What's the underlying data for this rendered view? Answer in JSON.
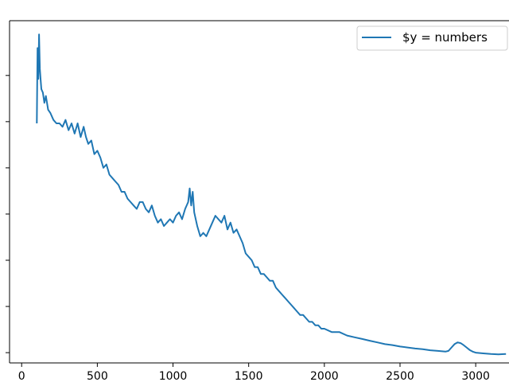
{
  "chart_data": {
    "type": "line",
    "title": "",
    "xlabel": "",
    "ylabel": "",
    "xlim": [
      -80,
      3220
    ],
    "ylim": [
      0.0,
      1.0
    ],
    "x_ticks": [
      {
        "value": 0,
        "label": "0"
      },
      {
        "value": 500,
        "label": "500"
      },
      {
        "value": 1000,
        "label": "1000"
      },
      {
        "value": 1500,
        "label": "1500"
      },
      {
        "value": 2000,
        "label": "2000"
      },
      {
        "value": 2500,
        "label": "2500"
      },
      {
        "value": 3000,
        "label": "3000"
      }
    ],
    "y_ticks": [
      0.03,
      0.165,
      0.3,
      0.435,
      0.57,
      0.705,
      0.84
    ],
    "grid": false,
    "legend": {
      "position": "top-right",
      "entries": [
        "$y = numbers"
      ]
    },
    "colors": {
      "series": "#1f77b4",
      "axes": "#000000",
      "background": "#ffffff"
    },
    "series": [
      {
        "name": "$y = numbers",
        "x": [
          100,
          105,
          110,
          115,
          120,
          125,
          130,
          140,
          150,
          160,
          175,
          190,
          210,
          230,
          250,
          270,
          290,
          310,
          330,
          350,
          370,
          390,
          410,
          425,
          440,
          460,
          480,
          500,
          520,
          540,
          560,
          580,
          600,
          620,
          640,
          660,
          680,
          700,
          720,
          740,
          760,
          780,
          800,
          820,
          840,
          860,
          880,
          900,
          920,
          940,
          960,
          980,
          1000,
          1020,
          1040,
          1060,
          1080,
          1100,
          1110,
          1120,
          1130,
          1140,
          1160,
          1180,
          1200,
          1220,
          1240,
          1260,
          1280,
          1300,
          1320,
          1340,
          1360,
          1380,
          1400,
          1420,
          1440,
          1460,
          1480,
          1500,
          1520,
          1540,
          1560,
          1580,
          1600,
          1620,
          1640,
          1660,
          1680,
          1700,
          1720,
          1740,
          1760,
          1780,
          1800,
          1820,
          1840,
          1860,
          1880,
          1900,
          1920,
          1940,
          1960,
          1980,
          2000,
          2050,
          2100,
          2150,
          2200,
          2250,
          2300,
          2350,
          2400,
          2450,
          2500,
          2550,
          2600,
          2650,
          2700,
          2750,
          2800,
          2820,
          2840,
          2860,
          2880,
          2900,
          2920,
          2940,
          2960,
          2980,
          3000,
          3050,
          3100,
          3150,
          3200
        ],
        "y": [
          0.7,
          0.92,
          0.83,
          0.96,
          0.86,
          0.83,
          0.8,
          0.79,
          0.76,
          0.78,
          0.74,
          0.73,
          0.71,
          0.7,
          0.7,
          0.69,
          0.71,
          0.68,
          0.7,
          0.67,
          0.7,
          0.66,
          0.69,
          0.66,
          0.64,
          0.65,
          0.61,
          0.62,
          0.6,
          0.57,
          0.58,
          0.55,
          0.54,
          0.53,
          0.52,
          0.5,
          0.5,
          0.48,
          0.47,
          0.46,
          0.45,
          0.47,
          0.47,
          0.45,
          0.44,
          0.46,
          0.43,
          0.41,
          0.42,
          0.4,
          0.41,
          0.42,
          0.41,
          0.43,
          0.44,
          0.42,
          0.45,
          0.47,
          0.51,
          0.46,
          0.5,
          0.44,
          0.4,
          0.37,
          0.38,
          0.37,
          0.39,
          0.41,
          0.43,
          0.42,
          0.41,
          0.43,
          0.39,
          0.41,
          0.38,
          0.39,
          0.37,
          0.35,
          0.32,
          0.31,
          0.3,
          0.28,
          0.28,
          0.26,
          0.26,
          0.25,
          0.24,
          0.24,
          0.22,
          0.21,
          0.2,
          0.19,
          0.18,
          0.17,
          0.16,
          0.15,
          0.14,
          0.14,
          0.13,
          0.12,
          0.12,
          0.11,
          0.11,
          0.1,
          0.1,
          0.09,
          0.09,
          0.08,
          0.075,
          0.07,
          0.065,
          0.06,
          0.055,
          0.052,
          0.048,
          0.045,
          0.042,
          0.04,
          0.037,
          0.035,
          0.033,
          0.035,
          0.045,
          0.055,
          0.06,
          0.058,
          0.052,
          0.045,
          0.038,
          0.033,
          0.03,
          0.028,
          0.026,
          0.025,
          0.026
        ]
      }
    ]
  }
}
